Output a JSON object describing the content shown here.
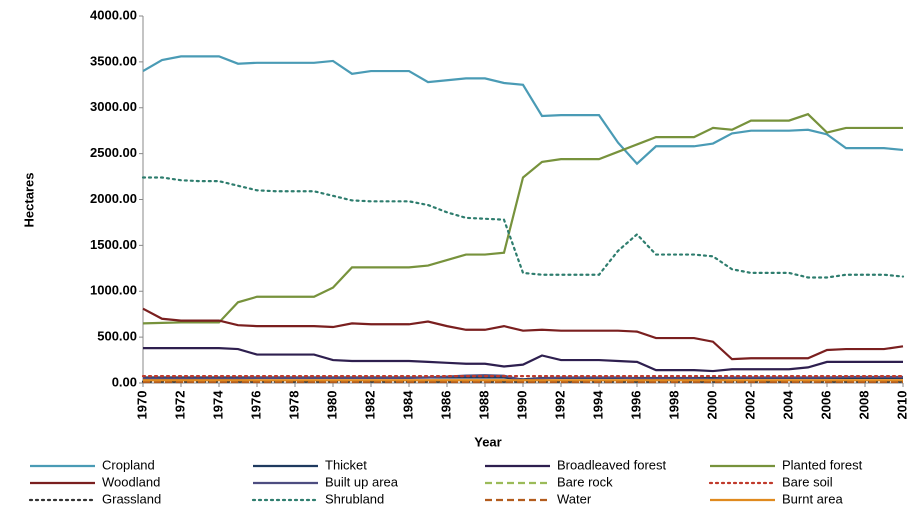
{
  "chart_data": {
    "type": "line",
    "x_label": "Year",
    "y_label": "Hectares",
    "x": [
      1970,
      1971,
      1972,
      1973,
      1974,
      1975,
      1976,
      1977,
      1978,
      1979,
      1980,
      1981,
      1982,
      1983,
      1984,
      1985,
      1986,
      1987,
      1988,
      1989,
      1990,
      1991,
      1992,
      1993,
      1994,
      1995,
      1996,
      1997,
      1998,
      1999,
      2000,
      2001,
      2002,
      2003,
      2004,
      2005,
      2006,
      2007,
      2008,
      2009,
      2010
    ],
    "xlim": [
      1970,
      2010
    ],
    "xticks": [
      1970,
      1972,
      1974,
      1976,
      1978,
      1980,
      1982,
      1984,
      1986,
      1988,
      1990,
      1992,
      1994,
      1996,
      1998,
      2000,
      2002,
      2004,
      2006,
      2008,
      2010
    ],
    "ylim": [
      0,
      4000
    ],
    "yticks": [
      {
        "value": 0,
        "label": "0.00"
      },
      {
        "value": 500,
        "label": "500.00"
      },
      {
        "value": 1000,
        "label": "1000.00"
      },
      {
        "value": 1500,
        "label": "1500.00"
      },
      {
        "value": 2000,
        "label": "2000.00"
      },
      {
        "value": 2500,
        "label": "2500.00"
      },
      {
        "value": 3000,
        "label": "3000.00"
      },
      {
        "value": 3500,
        "label": "3500.00"
      },
      {
        "value": 4000,
        "label": "4000.00"
      }
    ],
    "grid": false,
    "legend": "bottom",
    "series": [
      {
        "name": "Cropland",
        "color": "#4a9bb5",
        "dash": "solid",
        "values": [
          3400,
          3520,
          3560,
          3560,
          3560,
          3480,
          3490,
          3490,
          3490,
          3490,
          3510,
          3370,
          3400,
          3400,
          3400,
          3280,
          3300,
          3320,
          3320,
          3270,
          3250,
          2910,
          2920,
          2920,
          2920,
          2620,
          2390,
          2580,
          2580,
          2580,
          2610,
          2720,
          2750,
          2750,
          2750,
          2760,
          2710,
          2560,
          2560,
          2560,
          2540
        ]
      },
      {
        "name": "Thicket",
        "color": "#1f3a5f",
        "dash": "solid",
        "values": [
          60,
          60,
          60,
          60,
          60,
          60,
          60,
          60,
          60,
          60,
          60,
          60,
          60,
          60,
          60,
          60,
          60,
          60,
          60,
          60,
          40,
          55,
          55,
          55,
          55,
          55,
          55,
          55,
          55,
          55,
          55,
          55,
          55,
          55,
          55,
          55,
          55,
          55,
          55,
          55,
          55
        ]
      },
      {
        "name": "Broadleaved forest",
        "color": "#2e1f4f",
        "dash": "solid",
        "values": [
          380,
          380,
          380,
          380,
          380,
          370,
          310,
          310,
          310,
          310,
          250,
          240,
          240,
          240,
          240,
          230,
          220,
          210,
          210,
          180,
          200,
          300,
          250,
          250,
          250,
          240,
          230,
          140,
          140,
          140,
          130,
          150,
          150,
          150,
          150,
          170,
          230,
          230,
          230,
          230,
          230
        ]
      },
      {
        "name": "Planted forest",
        "color": "#77923c",
        "dash": "solid",
        "values": [
          650,
          655,
          660,
          660,
          660,
          880,
          940,
          940,
          940,
          940,
          1040,
          1260,
          1260,
          1260,
          1260,
          1280,
          1340,
          1400,
          1400,
          1420,
          2240,
          2410,
          2440,
          2440,
          2440,
          2520,
          2600,
          2680,
          2680,
          2680,
          2780,
          2760,
          2860,
          2860,
          2860,
          2930,
          2730,
          2780,
          2780,
          2780,
          2780
        ]
      },
      {
        "name": "Woodland",
        "color": "#7a1f1f",
        "dash": "solid",
        "values": [
          810,
          700,
          680,
          680,
          680,
          630,
          620,
          620,
          620,
          620,
          610,
          650,
          640,
          640,
          640,
          670,
          620,
          580,
          580,
          620,
          570,
          580,
          570,
          570,
          570,
          570,
          560,
          490,
          490,
          490,
          450,
          260,
          270,
          270,
          270,
          270,
          360,
          370,
          370,
          370,
          400
        ]
      },
      {
        "name": "Built up area",
        "color": "#4d4d80",
        "dash": "solid",
        "values": [
          50,
          50,
          50,
          50,
          50,
          50,
          55,
          55,
          55,
          55,
          55,
          55,
          55,
          55,
          55,
          60,
          70,
          80,
          85,
          80,
          30,
          50,
          60,
          60,
          60,
          60,
          50,
          50,
          50,
          50,
          40,
          60,
          60,
          60,
          60,
          60,
          60,
          65,
          65,
          65,
          65
        ]
      },
      {
        "name": "Bare rock",
        "color": "#9bbb59",
        "dash": "dash",
        "values": [
          25,
          25,
          25,
          25,
          25,
          25,
          25,
          25,
          25,
          25,
          25,
          25,
          25,
          25,
          25,
          25,
          25,
          25,
          25,
          25,
          25,
          25,
          25,
          25,
          25,
          25,
          25,
          25,
          25,
          25,
          25,
          25,
          25,
          25,
          25,
          25,
          25,
          25,
          25,
          25,
          25
        ]
      },
      {
        "name": "Bare soil",
        "color": "#c0392b",
        "dash": "dot",
        "values": [
          75,
          75,
          75,
          75,
          75,
          75,
          75,
          75,
          75,
          75,
          75,
          75,
          75,
          75,
          75,
          75,
          75,
          75,
          75,
          75,
          75,
          75,
          75,
          75,
          75,
          75,
          75,
          75,
          75,
          75,
          75,
          75,
          75,
          75,
          75,
          75,
          75,
          75,
          75,
          75,
          75
        ]
      },
      {
        "name": "Grassland",
        "color": "#333333",
        "dash": "dot",
        "values": [
          15,
          15,
          15,
          15,
          15,
          15,
          15,
          15,
          15,
          15,
          15,
          15,
          15,
          15,
          15,
          15,
          15,
          15,
          15,
          15,
          15,
          15,
          15,
          15,
          15,
          15,
          15,
          15,
          15,
          15,
          15,
          15,
          15,
          15,
          15,
          15,
          15,
          15,
          15,
          15,
          15
        ]
      },
      {
        "name": "Shrubland",
        "color": "#2e7d6e",
        "dash": "dot",
        "values": [
          2240,
          2240,
          2210,
          2200,
          2200,
          2150,
          2100,
          2090,
          2090,
          2090,
          2040,
          1990,
          1980,
          1980,
          1980,
          1940,
          1860,
          1800,
          1790,
          1780,
          1200,
          1180,
          1180,
          1180,
          1180,
          1440,
          1620,
          1400,
          1400,
          1400,
          1380,
          1240,
          1200,
          1200,
          1200,
          1150,
          1150,
          1180,
          1180,
          1180,
          1160
        ]
      },
      {
        "name": "Water",
        "color": "#b35c1e",
        "dash": "dash",
        "values": [
          10,
          10,
          10,
          10,
          10,
          10,
          10,
          10,
          10,
          10,
          10,
          10,
          10,
          10,
          10,
          10,
          10,
          10,
          10,
          10,
          10,
          10,
          10,
          10,
          10,
          10,
          10,
          10,
          10,
          10,
          10,
          10,
          10,
          10,
          10,
          10,
          10,
          10,
          10,
          10,
          10
        ]
      },
      {
        "name": "Burnt area",
        "color": "#e08a1e",
        "dash": "solid",
        "values": [
          30,
          30,
          30,
          30,
          30,
          30,
          30,
          30,
          30,
          30,
          30,
          30,
          30,
          30,
          30,
          30,
          30,
          30,
          30,
          30,
          30,
          30,
          30,
          30,
          30,
          30,
          30,
          30,
          30,
          30,
          30,
          30,
          30,
          30,
          30,
          30,
          30,
          30,
          30,
          30,
          30
        ]
      }
    ]
  }
}
